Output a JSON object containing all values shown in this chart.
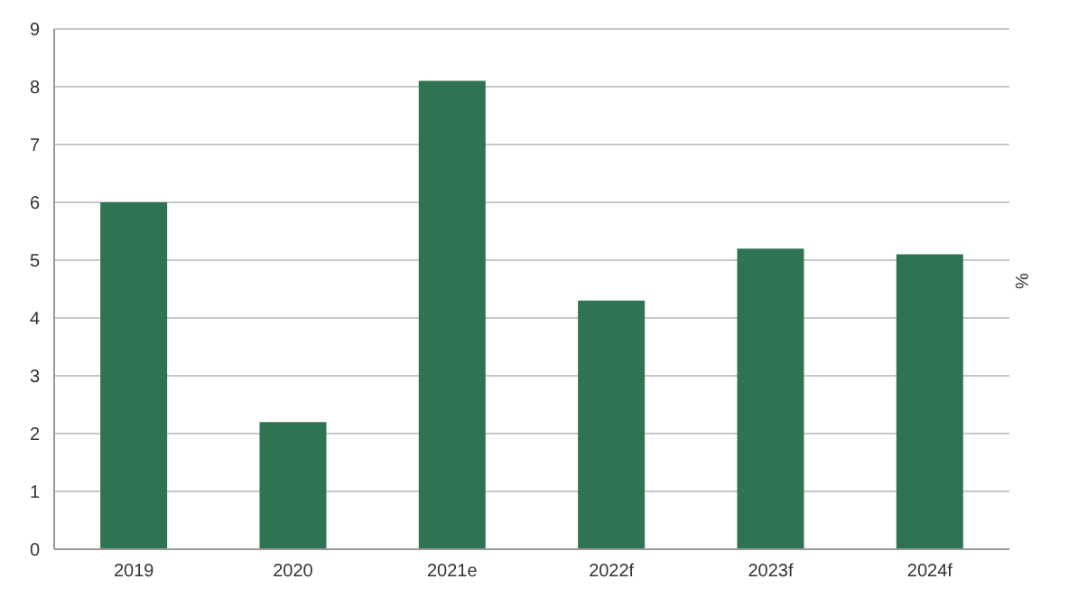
{
  "chart_data": {
    "type": "bar",
    "ylabel": "%",
    "categories": [
      "2019",
      "2020",
      "2021e",
      "2022f",
      "2023f",
      "2024f"
    ],
    "values": [
      6.0,
      2.2,
      8.1,
      4.3,
      5.2,
      5.1
    ],
    "color": "#2e7352",
    "ylim": [
      0,
      9
    ],
    "yticks": [
      0,
      1,
      2,
      3,
      4,
      5,
      6,
      7,
      8,
      9
    ],
    "grid": "y"
  }
}
